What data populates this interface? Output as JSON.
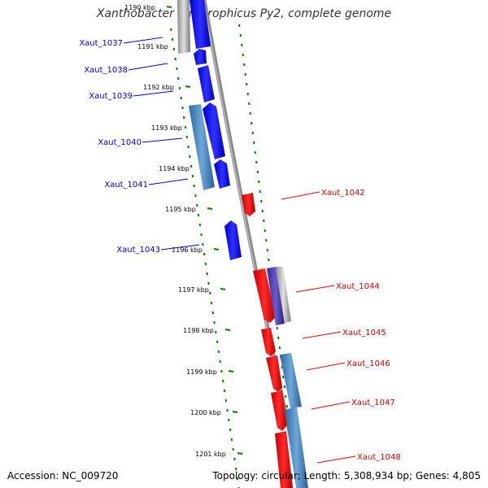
{
  "title": "Xanthobacter autotrophicus Py2, complete genome",
  "footer": {
    "accession": "Accession: NC_009720",
    "topology": "Topology: circular; Length: 5,308,934 bp; Genes: 4,805"
  },
  "colors": {
    "forward_gene": "#0000ff",
    "reverse_gene": "#ff0000",
    "forward_label": "#0000cc",
    "reverse_label": "#cc0000",
    "tick": "#008000",
    "backbone": "#888888"
  },
  "kbp_ticks": [
    "1190 kbp",
    "1191 kbp",
    "1192 kbp",
    "1193 kbp",
    "1194 kbp",
    "1195 kbp",
    "1196 kbp",
    "1197 kbp",
    "1198 kbp",
    "1199 kbp",
    "1200 kbp",
    "1201 kbp"
  ],
  "forward_labels": [
    "Xaut_1037",
    "Xaut_1038",
    "Xaut_1039",
    "Xaut_1040",
    "Xaut_1041",
    "Xaut_1043"
  ],
  "reverse_labels": [
    "Xaut_1042",
    "Xaut_1044",
    "Xaut_1045",
    "Xaut_1046",
    "Xaut_1047",
    "Xaut_1048"
  ]
}
